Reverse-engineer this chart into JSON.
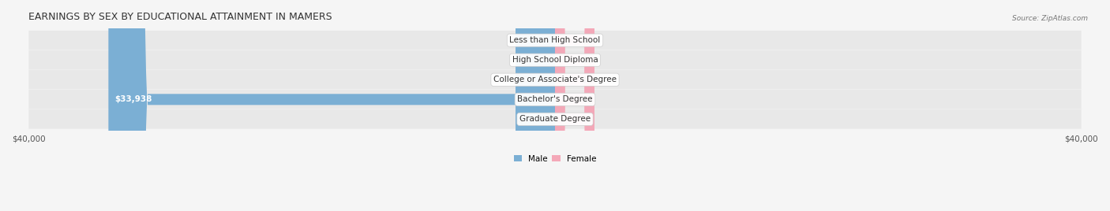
{
  "title": "EARNINGS BY SEX BY EDUCATIONAL ATTAINMENT IN MAMERS",
  "source": "Source: ZipAtlas.com",
  "categories": [
    "Less than High School",
    "High School Diploma",
    "College or Associate's Degree",
    "Bachelor's Degree",
    "Graduate Degree"
  ],
  "male_values": [
    0,
    0,
    0,
    33938,
    0
  ],
  "female_values": [
    0,
    0,
    0,
    0,
    0
  ],
  "male_color": "#7bafd4",
  "female_color": "#f4a8b8",
  "axis_max": 40000,
  "background_color": "#f0f0f0",
  "row_bg_color": "#e8e8e8",
  "bar_row_bg": "#dcdcdc",
  "title_fontsize": 9,
  "label_fontsize": 7.5,
  "tick_fontsize": 7.5
}
